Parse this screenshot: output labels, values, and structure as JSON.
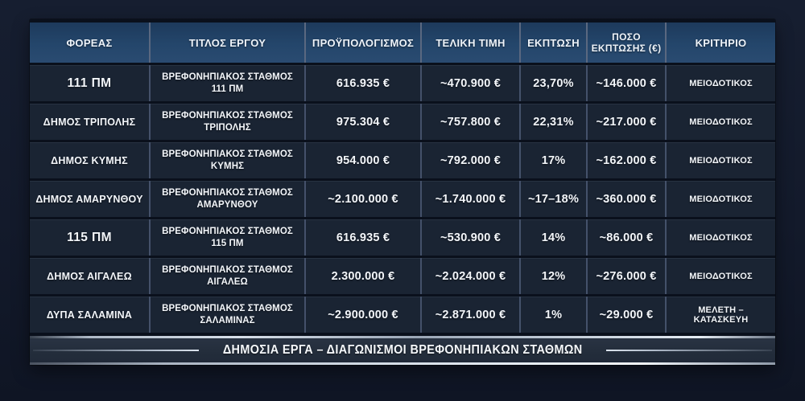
{
  "colors": {
    "page_bg": "#131a2b",
    "header_bg": "#24466b",
    "row_bg": "#1a2433",
    "divider": "#4a566a",
    "metallic_line": "#d7dfe9",
    "text": "#f3f6fa"
  },
  "table": {
    "headers": {
      "agency": "ΦΟΡΕΑΣ",
      "title": "ΤΙΤΛΟΣ ΕΡΓΟΥ",
      "budget": "ΠΡΟΫΠΟΛΟΓΙΣΜΟΣ",
      "final": "ΤΕΛΙΚΗ ΤΙΜΗ",
      "discount": "ΕΚΠΤΩΣΗ",
      "amount_line1": "ΠΟΣΟ",
      "amount_line2": "ΕΚΠΤΩΣΗΣ (€)",
      "criterion": "ΚΡΙΤΗΡΙΟ"
    },
    "rows": [
      {
        "agency": "111 ΠΜ",
        "title1": "ΒΡΕΦΟΝΗΠΙΑΚΟΣ ΣΤΑΘΜΟΣ",
        "title2": "111 ΠΜ",
        "budget": "616.935 €",
        "final": "~470.900 €",
        "discount": "23,70%",
        "amount": "~146.000 €",
        "criterion": "ΜΕΙΟΔΟΤΙΚΟΣ"
      },
      {
        "agency": "ΔΗΜΟΣ ΤΡΙΠΟΛΗΣ",
        "title1": "ΒΡΕΦΟΝΗΠΙΑΚΟΣ ΣΤΑΘΜΟΣ",
        "title2": "ΤΡΙΠΟΛΗΣ",
        "budget": "975.304 €",
        "final": "~757.800 €",
        "discount": "22,31%",
        "amount": "~217.000 €",
        "criterion": "ΜΕΙΟΔΟΤΙΚΟΣ"
      },
      {
        "agency": "ΔΗΜΟΣ ΚΥΜΗΣ",
        "title1": "ΒΡΕΦΟΝΗΠΙΑΚΟΣ ΣΤΑΘΜΟΣ",
        "title2": "ΚΥΜΗΣ",
        "budget": "954.000 €",
        "final": "~792.000 €",
        "discount": "17%",
        "amount": "~162.000 €",
        "criterion": "ΜΕΙΟΔΟΤΙΚΟΣ"
      },
      {
        "agency": "ΔΗΜΟΣ ΑΜΑΡΥΝΘΟΥ",
        "title1": "ΒΡΕΦΟΝΗΠΙΑΚΟΣ ΣΤΑΘΜΟΣ",
        "title2": "ΑΜΑΡΥΝΘΟΥ",
        "budget": "~2.100.000 €",
        "final": "~1.740.000 €",
        "discount": "~17–18%",
        "amount": "~360.000 €",
        "criterion": "ΜΕΙΟΔΟΤΙΚΟΣ"
      },
      {
        "agency": "115 ΠΜ",
        "title1": "ΒΡΕΦΟΝΗΠΙΑΚΟΣ ΣΤΑΘΜΟΣ",
        "title2": "115 ΠΜ",
        "budget": "616.935 €",
        "final": "~530.900 €",
        "discount": "14%",
        "amount": "~86.000 €",
        "criterion": "ΜΕΙΟΔΟΤΙΚΟΣ"
      },
      {
        "agency": "ΔΗΜΟΣ ΑΙΓΑΛΕΩ",
        "title1": "ΒΡΕΦΟΝΗΠΙΑΚΟΣ ΣΤΑΘΜΟΣ",
        "title2": "ΑΙΓΑΛΕΩ",
        "budget": "2.300.000 €",
        "final": "~2.024.000 €",
        "discount": "12%",
        "amount": "~276.000 €",
        "criterion": "ΜΕΙΟΔΟΤΙΚΟΣ"
      },
      {
        "agency": "ΔΥΠΑ ΣΑΛΑΜΙΝΑ",
        "title1": "ΒΡΕΦΟΝΗΠΙΑΚΟΣ ΣΤΑΘΜΟΣ",
        "title2": "ΣΑΛΑΜΙΝΑΣ",
        "budget": "~2.900.000 €",
        "final": "~2.871.000 €",
        "discount": "1%",
        "amount": "~29.000 €",
        "criterion": "ΜΕΛΕΤΗ – ΚΑΤΑΣΚΕΥΗ"
      }
    ]
  },
  "footer": {
    "title": "ΔΗΜΟΣΙΑ ΕΡΓΑ – ΔΙΑΓΩΝΙΣΜΟΙ ΒΡΕΦΟΝΗΠΙΑΚΩΝ ΣΤΑΘΜΩΝ"
  },
  "chart_data": {
    "type": "table",
    "title": "ΔΗΜΟΣΙΑ ΕΡΓΑ – ΔΙΑΓΩΝΙΣΜΟΙ ΒΡΕΦΟΝΗΠΙΑΚΩΝ ΣΤΑΘΜΩΝ",
    "columns": [
      "ΦΟΡΕΑΣ",
      "ΤΙΤΛΟΣ ΕΡΓΟΥ",
      "ΠΡΟΫΠΟΛΟΓΙΣΜΟΣ",
      "ΤΕΛΙΚΗ ΤΙΜΗ",
      "ΕΚΠΤΩΣΗ",
      "ΠΟΣΟ ΕΚΠΤΩΣΗΣ (€)",
      "ΚΡΙΤΗΡΙΟ"
    ],
    "rows": [
      [
        "111 ΠΜ",
        "ΒΡΕΦΟΝΗΠΙΑΚΟΣ ΣΤΑΘΜΟΣ 111 ΠΜ",
        "616.935 €",
        "~470.900 €",
        "23,70%",
        "~146.000 €",
        "ΜΕΙΟΔΟΤΙΚΟΣ"
      ],
      [
        "ΔΗΜΟΣ ΤΡΙΠΟΛΗΣ",
        "ΒΡΕΦΟΝΗΠΙΑΚΟΣ ΣΤΑΘΜΟΣ ΤΡΙΠΟΛΗΣ",
        "975.304 €",
        "~757.800 €",
        "22,31%",
        "~217.000 €",
        "ΜΕΙΟΔΟΤΙΚΟΣ"
      ],
      [
        "ΔΗΜΟΣ ΚΥΜΗΣ",
        "ΒΡΕΦΟΝΗΠΙΑΚΟΣ ΣΤΑΘΜΟΣ ΚΥΜΗΣ",
        "954.000 €",
        "~792.000 €",
        "17%",
        "~162.000 €",
        "ΜΕΙΟΔΟΤΙΚΟΣ"
      ],
      [
        "ΔΗΜΟΣ ΑΜΑΡΥΝΘΟΥ",
        "ΒΡΕΦΟΝΗΠΙΑΚΟΣ ΣΤΑΘΜΟΣ ΑΜΑΡΥΝΘΟΥ",
        "~2.100.000 €",
        "~1.740.000 €",
        "~17–18%",
        "~360.000 €",
        "ΜΕΙΟΔΟΤΙΚΟΣ"
      ],
      [
        "115 ΠΜ",
        "ΒΡΕΦΟΝΗΠΙΑΚΟΣ ΣΤΑΘΜΟΣ 115 ΠΜ",
        "616.935 €",
        "~530.900 €",
        "14%",
        "~86.000 €",
        "ΜΕΙΟΔΟΤΙΚΟΣ"
      ],
      [
        "ΔΗΜΟΣ ΑΙΓΑΛΕΩ",
        "ΒΡΕΦΟΝΗΠΙΑΚΟΣ ΣΤΑΘΜΟΣ ΑΙΓΑΛΕΩ",
        "2.300.000 €",
        "~2.024.000 €",
        "12%",
        "~276.000 €",
        "ΜΕΙΟΔΟΤΙΚΟΣ"
      ],
      [
        "ΔΥΠΑ ΣΑΛΑΜΙΝΑ",
        "ΒΡΕΦΟΝΗΠΙΑΚΟΣ ΣΤΑΘΜΟΣ ΣΑΛΑΜΙΝΑΣ",
        "~2.900.000 €",
        "~2.871.000 €",
        "1%",
        "~29.000 €",
        "ΜΕΛΕΤΗ – ΚΑΤΑΣΚΕΥΗ"
      ]
    ]
  }
}
